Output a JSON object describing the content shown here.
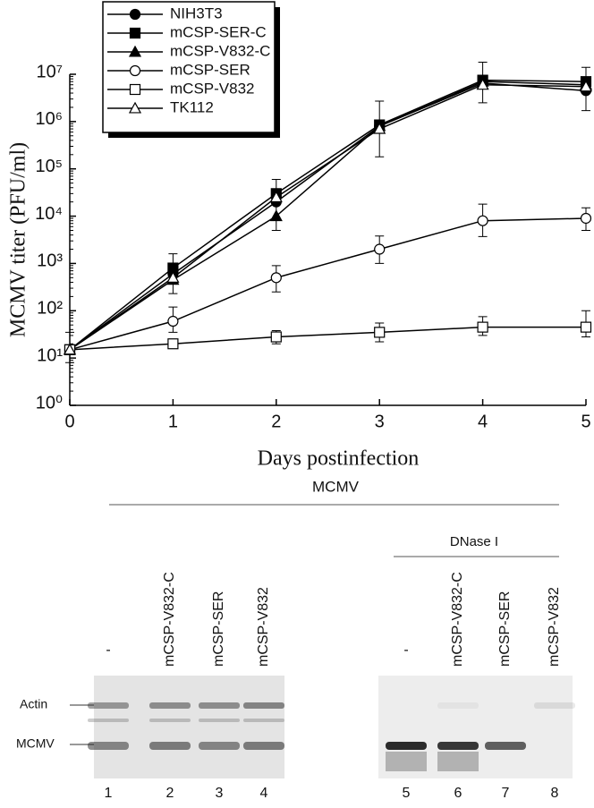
{
  "chart_data": {
    "type": "line",
    "x_label": "Days postinfection",
    "y_label": "MCMV titer (PFU/ml)",
    "x": [
      0,
      1,
      2,
      3,
      4,
      5
    ],
    "xlim": [
      0,
      5
    ],
    "xticks": [
      0,
      1,
      2,
      3,
      4,
      5
    ],
    "ylim": [
      1,
      10000000
    ],
    "log_y": true,
    "yticks": [
      {
        "value": 1,
        "label": "10⁰"
      },
      {
        "value": 10,
        "label": "10¹"
      },
      {
        "value": 100,
        "label": "10²"
      },
      {
        "value": 1000,
        "label": "10³"
      },
      {
        "value": 10000,
        "label": "10⁴"
      },
      {
        "value": 100000,
        "label": "10⁵"
      },
      {
        "value": 1000000,
        "label": "10⁶"
      },
      {
        "value": 10000000,
        "label": "10⁷"
      }
    ],
    "legend": "top-left",
    "series": [
      {
        "name": "NIH3T3",
        "color": "#000000",
        "marker": "circle-filled",
        "values": [
          15,
          600,
          20000,
          800000,
          6500000,
          4500000
        ],
        "err_low": [
          8,
          230,
          5000,
          180000,
          2500000,
          1700000
        ],
        "err_high": [
          35,
          1600,
          60000,
          2700000,
          18000000,
          14000000
        ]
      },
      {
        "name": "mCSP-SER-C",
        "color": "#000000",
        "marker": "square-filled",
        "values": [
          15,
          800,
          30000,
          850000,
          7500000,
          7000000
        ]
      },
      {
        "name": "mCSP-V832-C",
        "color": "#000000",
        "marker": "triangle-filled",
        "values": [
          15,
          450,
          10000,
          800000,
          7000000,
          6000000
        ]
      },
      {
        "name": "mCSP-SER",
        "color": "#000000",
        "marker": "circle-open",
        "values": [
          15,
          60,
          500,
          2000,
          8000,
          9000
        ],
        "err_low": [
          null,
          35,
          250,
          1000,
          3700,
          5000
        ],
        "err_high": [
          null,
          120,
          900,
          3800,
          18000,
          15000
        ]
      },
      {
        "name": "mCSP-V832",
        "color": "#000000",
        "marker": "square-open",
        "values": [
          15,
          20,
          28,
          35,
          45,
          45
        ],
        "err_low": [
          null,
          null,
          20,
          22,
          30,
          28
        ],
        "err_high": [
          null,
          null,
          38,
          55,
          75,
          100
        ]
      },
      {
        "name": "TK112",
        "color": "#000000",
        "marker": "triangle-open",
        "values": [
          15,
          500,
          25000,
          700000,
          6000000,
          5500000
        ]
      }
    ]
  },
  "blot": {
    "header": "MCMV",
    "dnase_label": "DNase I",
    "row_labels": [
      "Actin",
      "MCMV"
    ],
    "lanes": [
      {
        "label": "-",
        "number": 1
      },
      {
        "label": "mCSP-V832-C",
        "number": 2
      },
      {
        "label": "mCSP-SER",
        "number": 3
      },
      {
        "label": "mCSP-V832",
        "number": 4
      },
      {
        "label": "-",
        "number": 5
      },
      {
        "label": "mCSP-V832-C",
        "number": 6
      },
      {
        "label": "mCSP-SER",
        "number": 7
      },
      {
        "label": "mCSP-V832",
        "number": 8
      }
    ]
  }
}
